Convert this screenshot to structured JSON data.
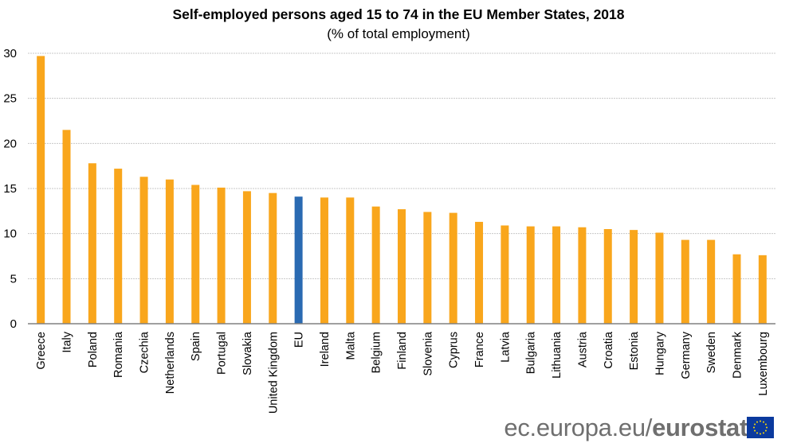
{
  "chart_data": {
    "type": "bar",
    "title": "Self-employed persons aged 15 to 74 in the EU Member States, 2018",
    "subtitle": "(% of total employment)",
    "xlabel": "",
    "ylabel": "",
    "ylim": [
      0,
      30
    ],
    "yticks": [
      "0",
      "5",
      "10",
      "15",
      "20",
      "25",
      "30"
    ],
    "grid": true,
    "categories": [
      "Greece",
      "Italy",
      "Poland",
      "Romania",
      "Czechia",
      "Netherlands",
      "Spain",
      "Portugal",
      "Slovakia",
      "United Kingdom",
      "EU",
      "Ireland",
      "Malta",
      "Belgium",
      "Finland",
      "Slovenia",
      "Cyprus",
      "France",
      "Latvia",
      "Bulgaria",
      "Lithuania",
      "Austria",
      "Croatia",
      "Estonia",
      "Hungary",
      "Germany",
      "Sweden",
      "Denmark",
      "Luxembourg"
    ],
    "values": [
      29.7,
      21.5,
      17.8,
      17.2,
      16.3,
      16.0,
      15.4,
      15.1,
      14.7,
      14.5,
      14.1,
      14.0,
      14.0,
      13.0,
      12.7,
      12.4,
      12.3,
      11.3,
      10.9,
      10.8,
      10.8,
      10.7,
      10.5,
      10.4,
      10.1,
      9.3,
      9.3,
      7.7,
      7.6
    ],
    "highlight": "EU",
    "colors": {
      "bar": "#f9a61c",
      "highlight": "#2a6ab2",
      "grid": "#c8c8c8",
      "axis": "#808080"
    }
  },
  "footer": {
    "domain_text": "ec.europa.eu/",
    "brand_text": "eurostat"
  },
  "logo": {
    "icon": "eu-flag-icon",
    "color": "#0b3a9e",
    "star_color": "#ffdd00"
  }
}
